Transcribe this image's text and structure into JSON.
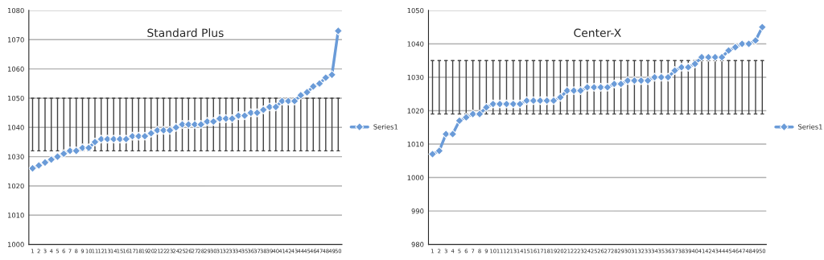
{
  "chart_data": [
    {
      "type": "line",
      "title": "Standard Plus",
      "categories": [
        "1",
        "2",
        "3",
        "4",
        "5",
        "6",
        "7",
        "8",
        "9",
        "10",
        "11",
        "12",
        "13",
        "14",
        "15",
        "16",
        "17",
        "18",
        "19",
        "20",
        "21",
        "22",
        "23",
        "24",
        "25",
        "26",
        "27",
        "28",
        "29",
        "30",
        "31",
        "32",
        "33",
        "34",
        "35",
        "36",
        "37",
        "38",
        "39",
        "40",
        "41",
        "42",
        "43",
        "44",
        "45",
        "46",
        "47",
        "48",
        "49",
        "50"
      ],
      "series": [
        {
          "name": "Series1",
          "color": "#6a9bd8",
          "values": [
            1026,
            1027,
            1028,
            1029,
            1030,
            1031,
            1032,
            1032,
            1033,
            1033,
            1035,
            1036,
            1036,
            1036,
            1036,
            1036,
            1037,
            1037,
            1037,
            1038,
            1039,
            1039,
            1039,
            1040,
            1041,
            1041,
            1041,
            1041,
            1042,
            1042,
            1043,
            1043,
            1043,
            1044,
            1044,
            1045,
            1045,
            1046,
            1047,
            1047,
            1049,
            1049,
            1049,
            1051,
            1052,
            1054,
            1055,
            1057,
            1058,
            1073
          ],
          "errors": [
            [
              1032,
              1050
            ],
            [
              1032,
              1050
            ],
            [
              1032,
              1050
            ],
            [
              1032,
              1050
            ],
            [
              1032,
              1050
            ],
            [
              1032,
              1050
            ],
            [
              1032,
              1050
            ],
            [
              1032,
              1050
            ],
            [
              1032,
              1050
            ],
            [
              1032,
              1050
            ],
            [
              1032,
              1050
            ],
            [
              1032,
              1050
            ],
            [
              1032,
              1050
            ],
            [
              1032,
              1050
            ],
            [
              1032,
              1050
            ],
            [
              1032,
              1050
            ],
            [
              1032,
              1050
            ],
            [
              1032,
              1050
            ],
            [
              1032,
              1050
            ],
            [
              1032,
              1050
            ],
            [
              1032,
              1050
            ],
            [
              1032,
              1050
            ],
            [
              1032,
              1050
            ],
            [
              1032,
              1050
            ],
            [
              1032,
              1050
            ],
            [
              1032,
              1050
            ],
            [
              1032,
              1050
            ],
            [
              1032,
              1050
            ],
            [
              1032,
              1050
            ],
            [
              1032,
              1050
            ],
            [
              1032,
              1050
            ],
            [
              1032,
              1050
            ],
            [
              1032,
              1050
            ],
            [
              1032,
              1050
            ],
            [
              1032,
              1050
            ],
            [
              1032,
              1050
            ],
            [
              1032,
              1050
            ],
            [
              1032,
              1050
            ],
            [
              1032,
              1050
            ],
            [
              1032,
              1050
            ],
            [
              1032,
              1050
            ],
            [
              1032,
              1050
            ],
            [
              1032,
              1050
            ],
            [
              1032,
              1050
            ],
            [
              1032,
              1050
            ],
            [
              1032,
              1050
            ],
            [
              1032,
              1050
            ],
            [
              1032,
              1050
            ],
            [
              1032,
              1050
            ],
            [
              1032,
              1050
            ]
          ]
        }
      ],
      "ylim": [
        1000,
        1080
      ],
      "yticks": [
        1000,
        1010,
        1020,
        1030,
        1040,
        1050,
        1060,
        1070,
        1080
      ],
      "grid": "y",
      "legend": "right",
      "marker": "diamond",
      "line_style": "solid"
    },
    {
      "type": "line",
      "title": "Center-X",
      "categories": [
        "1",
        "2",
        "3",
        "4",
        "5",
        "6",
        "7",
        "8",
        "9",
        "10",
        "11",
        "12",
        "13",
        "14",
        "15",
        "16",
        "17",
        "18",
        "19",
        "20",
        "21",
        "22",
        "23",
        "24",
        "25",
        "26",
        "27",
        "28",
        "29",
        "30",
        "31",
        "32",
        "33",
        "34",
        "35",
        "36",
        "37",
        "38",
        "39",
        "40",
        "41",
        "42",
        "43",
        "44",
        "45",
        "46",
        "47",
        "48",
        "49",
        "50"
      ],
      "series": [
        {
          "name": "Series1",
          "color": "#6a9bd8",
          "values": [
            1007,
            1008,
            1013,
            1013,
            1017,
            1018,
            1019,
            1019,
            1021,
            1022,
            1022,
            1022,
            1022,
            1022,
            1023,
            1023,
            1023,
            1023,
            1023,
            1024,
            1026,
            1026,
            1026,
            1027,
            1027,
            1027,
            1027,
            1028,
            1028,
            1029,
            1029,
            1029,
            1029,
            1030,
            1030,
            1030,
            1032,
            1033,
            1033,
            1034,
            1036,
            1036,
            1036,
            1036,
            1038,
            1039,
            1040,
            1040,
            1041,
            1045
          ],
          "errors": [
            [
              1019,
              1035
            ],
            [
              1019,
              1035
            ],
            [
              1019,
              1035
            ],
            [
              1019,
              1035
            ],
            [
              1019,
              1035
            ],
            [
              1019,
              1035
            ],
            [
              1019,
              1035
            ],
            [
              1019,
              1035
            ],
            [
              1019,
              1035
            ],
            [
              1019,
              1035
            ],
            [
              1019,
              1035
            ],
            [
              1019,
              1035
            ],
            [
              1019,
              1035
            ],
            [
              1019,
              1035
            ],
            [
              1019,
              1035
            ],
            [
              1019,
              1035
            ],
            [
              1019,
              1035
            ],
            [
              1019,
              1035
            ],
            [
              1019,
              1035
            ],
            [
              1019,
              1035
            ],
            [
              1019,
              1035
            ],
            [
              1019,
              1035
            ],
            [
              1019,
              1035
            ],
            [
              1019,
              1035
            ],
            [
              1019,
              1035
            ],
            [
              1019,
              1035
            ],
            [
              1019,
              1035
            ],
            [
              1019,
              1035
            ],
            [
              1019,
              1035
            ],
            [
              1019,
              1035
            ],
            [
              1019,
              1035
            ],
            [
              1019,
              1035
            ],
            [
              1019,
              1035
            ],
            [
              1019,
              1035
            ],
            [
              1019,
              1035
            ],
            [
              1019,
              1035
            ],
            [
              1019,
              1035
            ],
            [
              1019,
              1035
            ],
            [
              1019,
              1035
            ],
            [
              1019,
              1035
            ],
            [
              1019,
              1035
            ],
            [
              1019,
              1035
            ],
            [
              1019,
              1035
            ],
            [
              1019,
              1035
            ],
            [
              1019,
              1035
            ],
            [
              1019,
              1035
            ],
            [
              1019,
              1035
            ],
            [
              1019,
              1035
            ],
            [
              1019,
              1035
            ],
            [
              1019,
              1035
            ]
          ]
        }
      ],
      "ylim": [
        980,
        1050
      ],
      "yticks": [
        980,
        990,
        1000,
        1010,
        1020,
        1030,
        1040,
        1050
      ],
      "grid": "y",
      "legend": "right",
      "marker": "diamond",
      "line_style": "solid"
    }
  ]
}
